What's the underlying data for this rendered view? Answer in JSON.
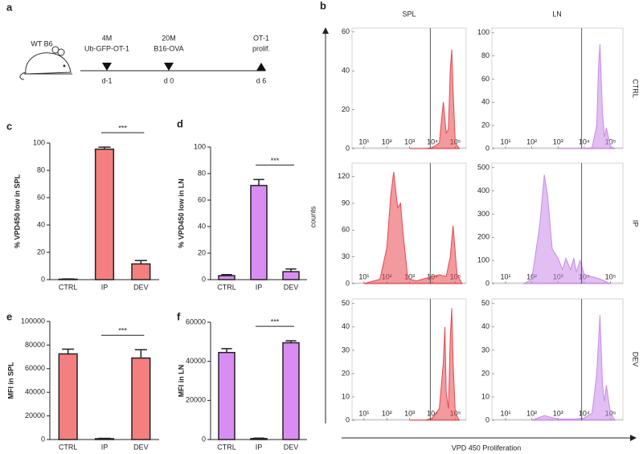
{
  "panel_labels": [
    "a",
    "b",
    "c",
    "d",
    "e",
    "f"
  ],
  "timeline": {
    "subject": "WT B6",
    "events": [
      {
        "lines": [
          "4M",
          "Ub-GFP-OT-1"
        ],
        "day": "d-1"
      },
      {
        "lines": [
          "20M",
          "B16-OVA"
        ],
        "day": "d 0"
      },
      {
        "lines": [
          "OT-1",
          "prolif."
        ],
        "day": "d 6"
      }
    ]
  },
  "flow": {
    "columns": [
      "SPL",
      "LN"
    ],
    "rows": [
      "CTRL",
      "IP",
      "DEV"
    ],
    "ylabel": "counts",
    "xlabel": "VPD 450 Proliferation"
  },
  "chart_data": [
    {
      "type": "bar",
      "ylabel": "% VPD450 low in SPL",
      "categories": [
        "CTRL",
        "IP",
        "DEV"
      ],
      "values": [
        0.3,
        95.5,
        11.5
      ],
      "errors": [
        0.2,
        1.5,
        2.5
      ],
      "color": "#f47f7f",
      "ylim": [
        0,
        100
      ],
      "yticks": [
        0,
        20,
        40,
        60,
        80,
        100
      ],
      "annotation": "***"
    },
    {
      "type": "bar",
      "ylabel": "% VPD450 low in LN",
      "categories": [
        "CTRL",
        "IP",
        "DEV"
      ],
      "values": [
        3,
        71,
        6
      ],
      "errors": [
        0.8,
        4.5,
        2
      ],
      "color": "#d98cf2",
      "ylim": [
        0,
        100
      ],
      "yticks": [
        0,
        20,
        40,
        60,
        80,
        100
      ],
      "annotation": "***"
    },
    {
      "type": "bar",
      "ylabel": "MFI in SPL",
      "categories": [
        "CTRL",
        "IP",
        "DEV"
      ],
      "values": [
        72500,
        700,
        69000
      ],
      "errors": [
        4000,
        300,
        7000
      ],
      "color": "#f47f7f",
      "ylim": [
        0,
        100000
      ],
      "yticks": [
        0,
        20000,
        40000,
        60000,
        80000,
        100000
      ],
      "annotation": "***"
    },
    {
      "type": "bar",
      "ylabel": "MFI in LN",
      "categories": [
        "CTRL",
        "IP",
        "DEV"
      ],
      "values": [
        44500,
        500,
        49500
      ],
      "errors": [
        2000,
        200,
        1000
      ],
      "color": "#d98cf2",
      "ylim": [
        0,
        60000
      ],
      "yticks": [
        0,
        20000,
        40000,
        60000
      ],
      "annotation": "***"
    },
    {
      "type": "area",
      "color": "#e8474f",
      "log_x": true,
      "gate": 8000,
      "x": [
        1000,
        5000,
        10000,
        20000,
        25000,
        30000,
        40000,
        50000,
        60000,
        70000,
        80000,
        100000,
        150000
      ],
      "values": [
        0,
        0,
        0.5,
        3,
        15,
        24,
        8,
        10,
        40,
        51,
        30,
        3,
        0
      ],
      "xlim": [
        3,
        300000
      ],
      "xticks": [
        {
          "value": 10,
          "label": "10¹"
        },
        {
          "value": 100,
          "label": "10²"
        },
        {
          "value": 1000,
          "label": "10³"
        },
        {
          "value": 10000,
          "label": "10⁴"
        },
        {
          "value": 100000,
          "label": "10⁵"
        }
      ],
      "ylim": [
        0,
        62
      ],
      "yticks": [
        0,
        20,
        40,
        60
      ]
    },
    {
      "type": "area",
      "color": "#c98ae8",
      "log_x": true,
      "gate": 8000,
      "x": [
        1000,
        10000,
        20000,
        30000,
        35000,
        40000,
        50000,
        60000,
        70000,
        80000,
        100000,
        150000
      ],
      "values": [
        0,
        0,
        1,
        20,
        70,
        90,
        30,
        10,
        18,
        12,
        2,
        0
      ],
      "xlim": [
        3,
        300000
      ],
      "xticks": [
        {
          "value": 10,
          "label": "10¹"
        },
        {
          "value": 100,
          "label": "10²"
        },
        {
          "value": 1000,
          "label": "10³"
        },
        {
          "value": 10000,
          "label": "10⁴"
        },
        {
          "value": 100000,
          "label": "10⁵"
        }
      ],
      "ylim": [
        0,
        104
      ],
      "yticks": [
        0,
        20,
        40,
        60,
        80,
        100
      ]
    },
    {
      "type": "area",
      "color": "#e8474f",
      "log_x": true,
      "gate": 8000,
      "x": [
        10,
        50,
        100,
        150,
        200,
        300,
        400,
        500,
        800,
        1000,
        2000,
        5000,
        10000,
        20000,
        40000,
        60000,
        80000,
        120000,
        200000
      ],
      "values": [
        0,
        5,
        40,
        100,
        125,
        85,
        90,
        60,
        10,
        5,
        3,
        6,
        8,
        10,
        8,
        30,
        65,
        10,
        0
      ],
      "xlim": [
        3,
        300000
      ],
      "xticks": [
        {
          "value": 10,
          "label": "10¹"
        },
        {
          "value": 100,
          "label": "10²"
        },
        {
          "value": 1000,
          "label": "10³"
        },
        {
          "value": 10000,
          "label": "10⁴"
        },
        {
          "value": 100000,
          "label": "10⁵"
        }
      ],
      "ylim": [
        0,
        135
      ],
      "yticks": [
        0,
        30,
        60,
        90,
        120
      ]
    },
    {
      "type": "area",
      "color": "#c98ae8",
      "log_x": true,
      "gate": 8000,
      "x": [
        50,
        100,
        200,
        300,
        400,
        600,
        1000,
        1500,
        2000,
        3000,
        4000,
        5000,
        7000,
        10000,
        20000,
        40000,
        100000
      ],
      "values": [
        0,
        20,
        250,
        470,
        380,
        150,
        110,
        60,
        110,
        60,
        110,
        50,
        100,
        40,
        30,
        20,
        0
      ],
      "xlim": [
        3,
        300000
      ],
      "xticks": [
        {
          "value": 10,
          "label": "10¹"
        },
        {
          "value": 100,
          "label": "10²"
        },
        {
          "value": 1000,
          "label": "10³"
        },
        {
          "value": 10000,
          "label": "10⁴"
        },
        {
          "value": 100000,
          "label": "10⁵"
        }
      ],
      "ylim": [
        0,
        520
      ],
      "yticks": [
        0,
        100,
        200,
        300,
        400,
        500
      ]
    },
    {
      "type": "area",
      "color": "#e8474f",
      "log_x": true,
      "gate": 8000,
      "x": [
        1000,
        5000,
        10000,
        20000,
        30000,
        35000,
        40000,
        50000,
        60000,
        70000,
        80000,
        100000,
        150000
      ],
      "values": [
        0,
        0,
        1,
        5,
        25,
        40,
        12,
        5,
        35,
        48,
        25,
        3,
        0
      ],
      "xlim": [
        3,
        300000
      ],
      "xticks": [
        {
          "value": 10,
          "label": "10¹"
        },
        {
          "value": 100,
          "label": "10²"
        },
        {
          "value": 1000,
          "label": "10³"
        },
        {
          "value": 10000,
          "label": "10⁴"
        },
        {
          "value": 100000,
          "label": "10⁵"
        }
      ],
      "ylim": [
        0,
        52
      ],
      "yticks": [
        0,
        10,
        20,
        30,
        40,
        50
      ]
    },
    {
      "type": "area",
      "color": "#c98ae8",
      "log_x": true,
      "gate": 8000,
      "x": [
        100,
        300,
        1000,
        5000,
        10000,
        20000,
        30000,
        40000,
        50000,
        60000,
        70000,
        100000,
        150000
      ],
      "values": [
        0,
        2,
        0.5,
        0.5,
        1,
        3,
        20,
        45,
        15,
        8,
        15,
        3,
        0
      ],
      "xlim": [
        3,
        300000
      ],
      "xticks": [
        {
          "value": 10,
          "label": "10¹"
        },
        {
          "value": 100,
          "label": "10²"
        },
        {
          "value": 1000,
          "label": "10³"
        },
        {
          "value": 10000,
          "label": "10⁴"
        },
        {
          "value": 100000,
          "label": "10⁵"
        }
      ],
      "ylim": [
        0,
        52
      ],
      "yticks": [
        0,
        10,
        20,
        30,
        40,
        50
      ]
    }
  ]
}
